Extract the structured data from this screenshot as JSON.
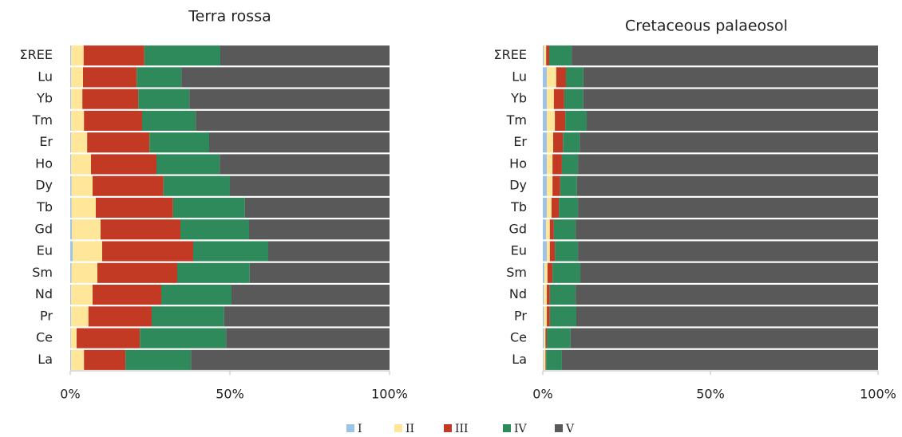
{
  "chart_data": [
    {
      "type": "stacked-bar-horizontal",
      "title": "Terra rossa",
      "categories": [
        "ΣREE",
        "Lu",
        "Yb",
        "Tm",
        "Er",
        "Ho",
        "Dy",
        "Tb",
        "Gd",
        "Eu",
        "Sm",
        "Nd",
        "Pr",
        "Ce",
        "La"
      ],
      "series": [
        {
          "name": "I",
          "color": "#9dc3e6",
          "values": [
            0.3,
            0.3,
            0.3,
            0.3,
            0.3,
            0.3,
            0.4,
            0.4,
            0.5,
            0.8,
            0.4,
            0.3,
            0.3,
            0.2,
            0.3
          ]
        },
        {
          "name": "II",
          "color": "#ffe699",
          "values": [
            3.9,
            3.7,
            3.5,
            4,
            5,
            6.2,
            6.6,
            7.6,
            9,
            9.2,
            8.1,
            6.7,
            5.4,
            1.8,
            4
          ]
        },
        {
          "name": "III",
          "color": "#c33a24",
          "values": [
            19,
            16.8,
            17.5,
            18.2,
            19.5,
            20.5,
            22.2,
            24.2,
            25,
            28.5,
            25,
            21.5,
            19.8,
            19.8,
            13
          ]
        },
        {
          "name": "IV",
          "color": "#2e8a5a",
          "values": [
            23.8,
            14,
            16,
            16.8,
            18.7,
            19.8,
            20.8,
            22.5,
            21.5,
            23.5,
            22.7,
            22,
            22.7,
            27,
            20.5
          ]
        },
        {
          "name": "V",
          "color": "#595959",
          "values": [
            53,
            65.2,
            62.7,
            60.7,
            56.5,
            53.2,
            50,
            45.3,
            44,
            38,
            43.8,
            49.5,
            51.8,
            51.2,
            62.2
          ]
        }
      ],
      "xlim": [
        0,
        100
      ],
      "xticks": [
        {
          "value": 0,
          "label": "0%"
        },
        {
          "value": 50,
          "label": "50%"
        },
        {
          "value": 100,
          "label": "100%"
        }
      ]
    },
    {
      "type": "stacked-bar-horizontal",
      "title": "Cretaceous palaeosol",
      "categories": [
        "ΣREE",
        "Lu",
        "Yb",
        "Tm",
        "Er",
        "Ho",
        "Dy",
        "Tb",
        "Gd",
        "Eu",
        "Sm",
        "Nd",
        "Pr",
        "Ce",
        "La"
      ],
      "series": [
        {
          "name": "I",
          "color": "#9dc3e6",
          "values": [
            0.3,
            1.2,
            1.2,
            1.2,
            1.2,
            1.2,
            1.2,
            1.2,
            1,
            1.2,
            0.5,
            0.3,
            0.3,
            0.3,
            0.2
          ]
        },
        {
          "name": "II",
          "color": "#ffe699",
          "values": [
            0.7,
            2.8,
            2.1,
            2.4,
            1.9,
            1.7,
            1.7,
            1.4,
            1.1,
            0.9,
            0.9,
            0.9,
            0.9,
            0.5,
            0.6
          ]
        },
        {
          "name": "III",
          "color": "#c33a24",
          "values": [
            0.9,
            2.9,
            3.1,
            3.1,
            2.9,
            2.8,
            2.3,
            2.2,
            1.2,
            1.5,
            1.5,
            0.9,
            0.9,
            0.4,
            0.2
          ]
        },
        {
          "name": "IV",
          "color": "#2e8a5a",
          "values": [
            6.7,
            5.2,
            5.7,
            6.4,
            5,
            4.8,
            5,
            5.7,
            6.5,
            6.9,
            8.3,
            7.7,
            7.9,
            7.1,
            4.7
          ]
        },
        {
          "name": "V",
          "color": "#595959",
          "values": [
            91.4,
            87.9,
            87.9,
            86.9,
            89,
            89.5,
            89.8,
            89.5,
            90.2,
            89.5,
            88.8,
            90.2,
            90,
            91.7,
            94.3
          ]
        }
      ],
      "xlim": [
        0,
        100
      ],
      "xticks": [
        {
          "value": 0,
          "label": "0%"
        },
        {
          "value": 50,
          "label": "50%"
        },
        {
          "value": 100,
          "label": "100%"
        }
      ]
    }
  ]
}
